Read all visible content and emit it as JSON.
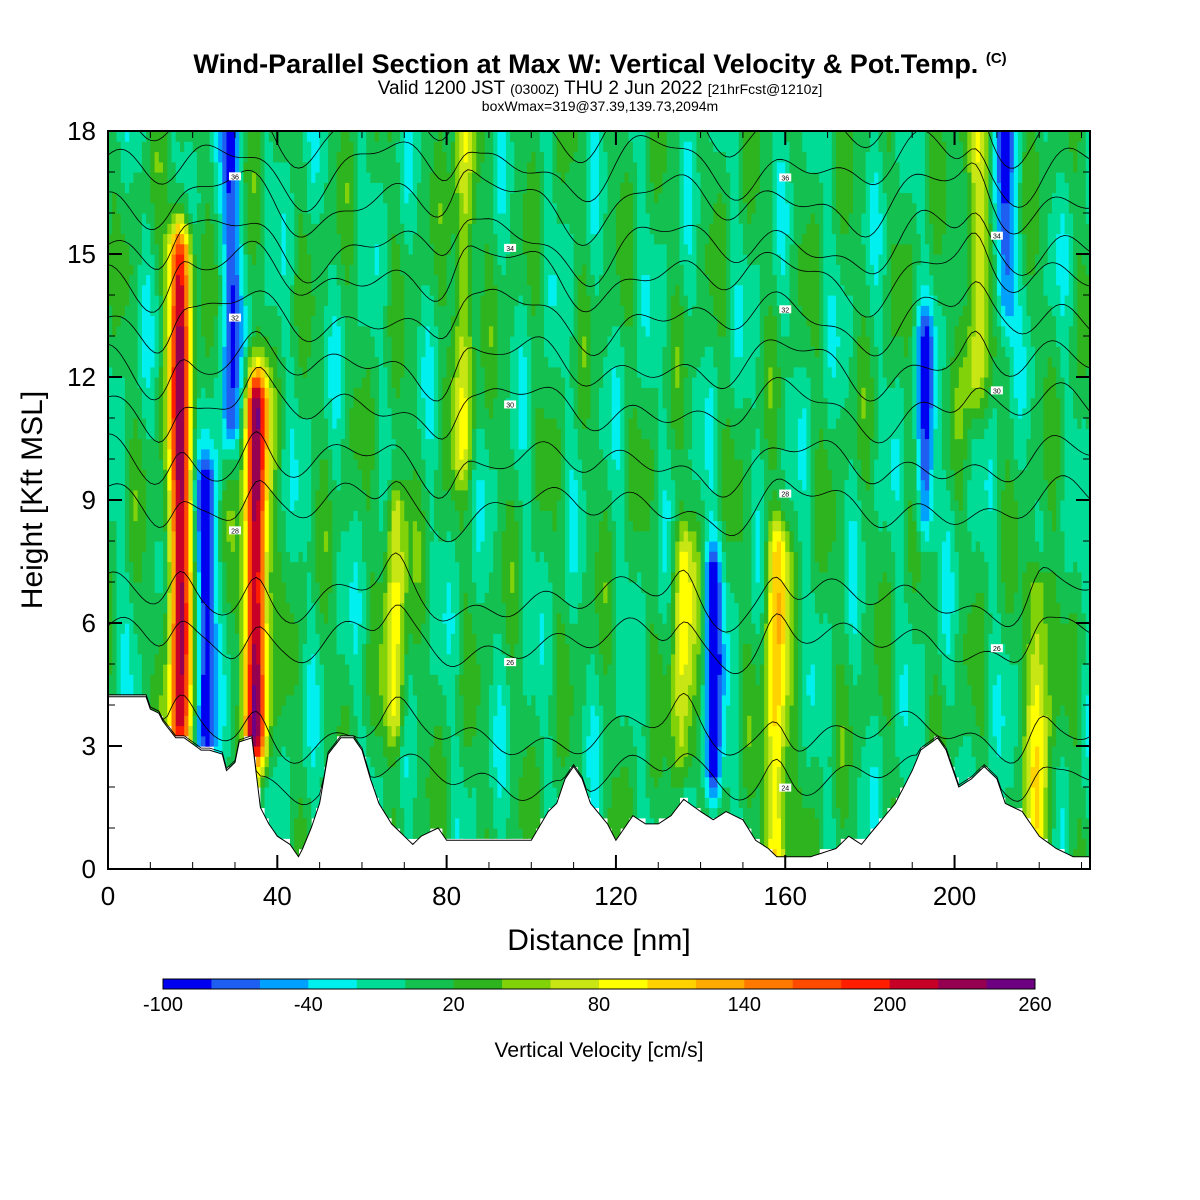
{
  "chart_data": {
    "type": "heatmap",
    "title": "Wind-Parallel Section at Max W: Vertical Velocity & Pot.Temp.",
    "title_suffix": "(C)",
    "subtitle_parts": [
      "Valid 1200 JST",
      "(0300Z)",
      "THU 2 Jun 2022",
      "[21hrFcst@1210z]"
    ],
    "subtitle2": "boxWmax=319@37.39,139.73,2094m",
    "xlabel": "Distance [nm]",
    "ylabel": "Height [Kft MSL]",
    "xlim": [
      0,
      232
    ],
    "ylim": [
      0,
      18
    ],
    "x_ticks": [
      "0",
      "40",
      "80",
      "120",
      "160",
      "200"
    ],
    "y_ticks": [
      "0",
      "3",
      "6",
      "9",
      "12",
      "15",
      "18"
    ],
    "colorbar": {
      "label": "Vertical Velocity [cm/s]",
      "tick_labels": [
        "-100",
        "-40",
        "20",
        "80",
        "140",
        "200",
        "260"
      ],
      "levels": [
        -100,
        -80,
        -60,
        -40,
        -20,
        0,
        20,
        40,
        60,
        80,
        100,
        120,
        140,
        160,
        180,
        200,
        220,
        240,
        260
      ],
      "colors": [
        "#0000f0",
        "#1e5ef0",
        "#00a0ff",
        "#00f0f0",
        "#00dc96",
        "#14c050",
        "#2db41e",
        "#82d20a",
        "#c8e614",
        "#ffff00",
        "#ffd200",
        "#ffaa00",
        "#ff7800",
        "#ff4b00",
        "#ff1e00",
        "#c80028",
        "#960050",
        "#6e0082"
      ]
    },
    "background_level": 0,
    "updraft_cores": [
      {
        "x": 17,
        "z_bottom": 3.5,
        "z_top": 14.8,
        "max": 220
      },
      {
        "x": 35,
        "z_bottom": 3.5,
        "z_top": 11.2,
        "max": 240
      },
      {
        "x": 68,
        "z_bottom": 4.0,
        "z_top": 8.5,
        "max": 90
      },
      {
        "x": 84,
        "z_bottom": 10.5,
        "z_top": 18,
        "max": 75
      },
      {
        "x": 136,
        "z_bottom": 3.0,
        "z_top": 7.5,
        "max": 90
      },
      {
        "x": 158,
        "z_bottom": 0.5,
        "z_top": 7.5,
        "max": 120
      },
      {
        "x": 205,
        "z_bottom": 12.0,
        "z_top": 18,
        "max": 80
      },
      {
        "x": 220,
        "z_bottom": 0.5,
        "z_top": 6.5,
        "max": 95
      }
    ],
    "downdraft_cores": [
      {
        "x": 23,
        "z_bottom": 3.5,
        "z_top": 9.0,
        "min": -100
      },
      {
        "x": 29,
        "z_bottom": 11.0,
        "z_top": 18,
        "min": -75
      },
      {
        "x": 143,
        "z_bottom": 2.5,
        "z_top": 7.0,
        "min": -90
      },
      {
        "x": 193,
        "z_bottom": 9.0,
        "z_top": 12.5,
        "min": -70
      },
      {
        "x": 212,
        "z_bottom": 14.0,
        "z_top": 18,
        "min": -70
      }
    ],
    "terrain": {
      "x": [
        0,
        9,
        10,
        12,
        13,
        16,
        18,
        22,
        24,
        27,
        28,
        30,
        31,
        34,
        36,
        38,
        40,
        43,
        45,
        46,
        48,
        50,
        52,
        55,
        56,
        58,
        60,
        62,
        64,
        67,
        69,
        72,
        74,
        78,
        80,
        86,
        92,
        96,
        100,
        104,
        106,
        108,
        110,
        112,
        114,
        118,
        120,
        122,
        124,
        127,
        130,
        133,
        136,
        140,
        143,
        146,
        150,
        153,
        156,
        158,
        160,
        163,
        166,
        172,
        175,
        178,
        182,
        186,
        190,
        192,
        196,
        198,
        201,
        204,
        207,
        210,
        212,
        214,
        216,
        218,
        220,
        224,
        228,
        232
      ],
      "z": [
        4.2,
        4.2,
        3.9,
        3.8,
        3.6,
        3.2,
        3.2,
        2.9,
        2.9,
        2.8,
        2.4,
        2.6,
        3.1,
        3.2,
        1.5,
        1.1,
        0.8,
        0.6,
        0.3,
        0.5,
        1.0,
        1.6,
        2.8,
        3.2,
        3.2,
        3.2,
        2.9,
        2.2,
        1.6,
        1.1,
        0.9,
        0.6,
        0.8,
        1.0,
        0.7,
        0.7,
        0.7,
        0.7,
        0.7,
        1.4,
        1.6,
        2.2,
        2.5,
        2.2,
        1.6,
        1.1,
        0.7,
        1.0,
        1.3,
        1.1,
        1.1,
        1.3,
        1.7,
        1.4,
        1.2,
        1.4,
        1.2,
        0.7,
        0.5,
        0.3,
        0.3,
        0.3,
        0.3,
        0.5,
        0.8,
        0.6,
        1.1,
        1.6,
        2.4,
        2.9,
        3.2,
        2.9,
        2.0,
        2.2,
        2.5,
        2.2,
        1.6,
        1.5,
        1.4,
        1.1,
        0.8,
        0.5,
        0.3,
        0.3
      ]
    },
    "theta_contours": {
      "levels": [
        24,
        26,
        28,
        30,
        32,
        34,
        36
      ],
      "labeled_levels": [
        24,
        26,
        28,
        30,
        32,
        34,
        36
      ]
    }
  }
}
